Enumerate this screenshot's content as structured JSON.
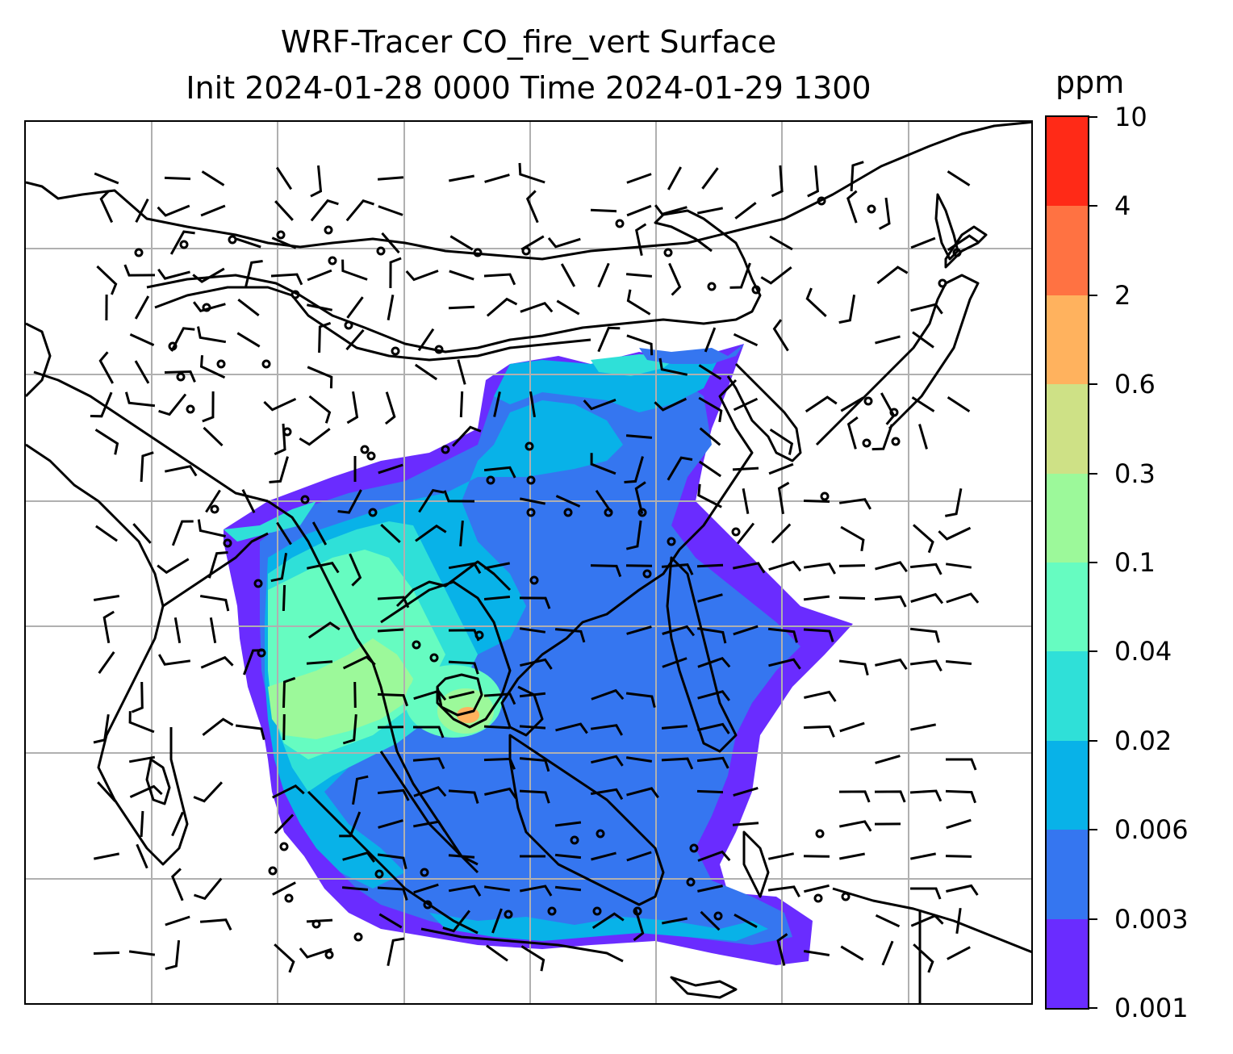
{
  "title": {
    "line1": "WRF-Tracer CO_fire_vert Surface",
    "line2": "Init 2024-01-28 0000 Time 2024-01-29 1300"
  },
  "colorbar": {
    "unit": "ppm",
    "levels": [
      "0.001",
      "0.003",
      "0.006",
      "0.02",
      "0.04",
      "0.1",
      "0.3",
      "0.6",
      "2",
      "4",
      "10"
    ],
    "colors": [
      "#6a2cff",
      "#3576f0",
      "#08b2e8",
      "#2fe0d8",
      "#66fcc1",
      "#9cf99a",
      "#cee186",
      "#ffb25e",
      "#ff7242",
      "#ff2a17"
    ]
  },
  "map": {
    "gridlines": true,
    "plume_colors": {
      "low": "#6a2cff",
      "mid": "#3576f0",
      "cyan": "#08b2e8",
      "teal": "#2fe0d8",
      "green": "#66fcc1",
      "lime": "#9cf99a",
      "orange": "#ffb25e"
    }
  }
}
